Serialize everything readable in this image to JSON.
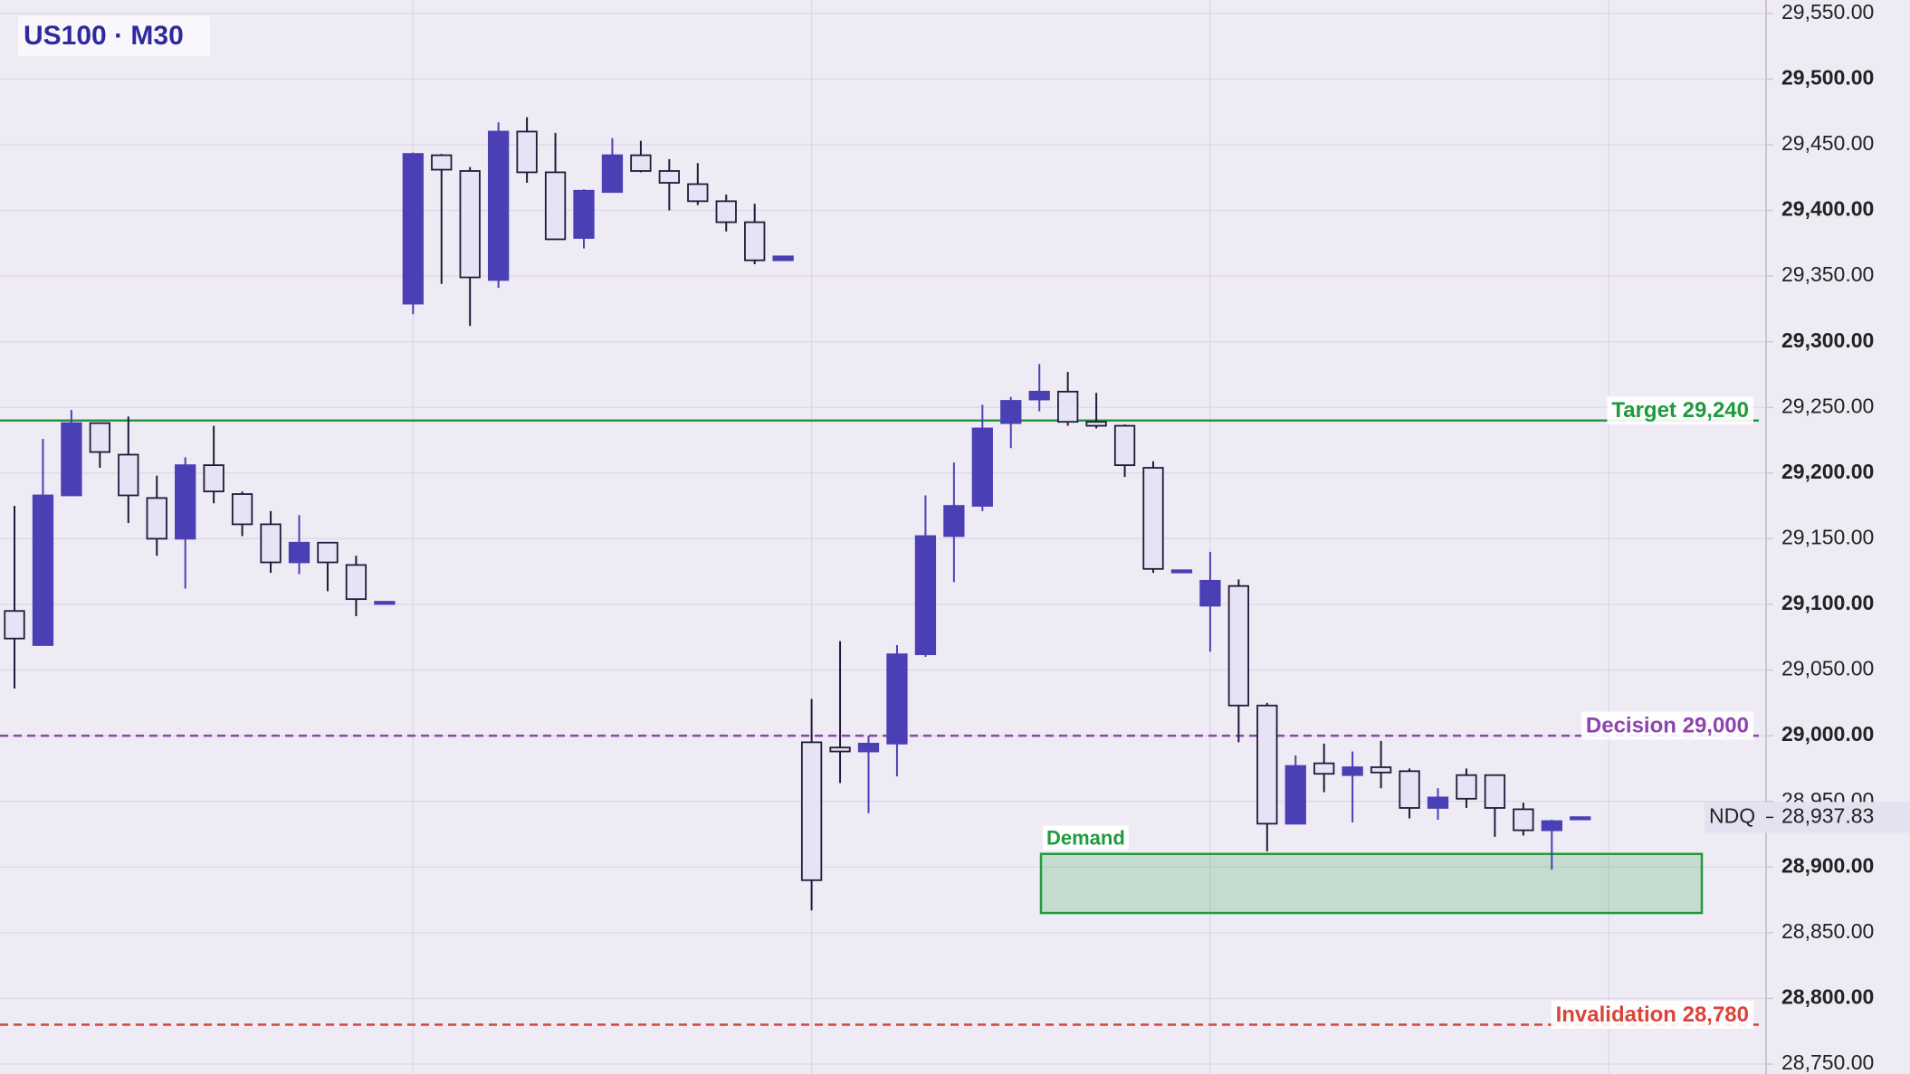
{
  "chart_data": {
    "type": "candlestick",
    "title": "US100 · M30",
    "series": [
      {
        "name": "US100",
        "up_color": "#4b3fb5",
        "down_color": "#e6e3f4",
        "outline": "#1e1b3a",
        "open": [
          29095,
          29069,
          29183,
          29238,
          29214,
          29181,
          29150,
          29206,
          29184,
          29161,
          29132,
          29147,
          29130,
          29102,
          29329,
          29442,
          29430,
          29347,
          29460,
          29429,
          29379,
          29414,
          29442,
          29430,
          29420,
          29407,
          29391,
          29362,
          28995,
          28991,
          28988,
          28994,
          29062,
          29152,
          29175,
          29238,
          29256,
          29262,
          29239,
          29236,
          29204,
          29126,
          29099,
          29114,
          29023,
          28933,
          28979,
          28970,
          28976,
          28973,
          28945,
          28970,
          28970,
          28944,
          28928,
          28938
        ],
        "high": [
          29175,
          29226,
          29248,
          29238,
          29243,
          29198,
          29212,
          29236,
          29186,
          29171,
          29168,
          29147,
          29137,
          29102,
          29444,
          29443,
          29433,
          29467,
          29471,
          29459,
          29416,
          29455,
          29453,
          29439,
          29436,
          29412,
          29405,
          29365,
          29028,
          29072,
          29000,
          29069,
          29183,
          29208,
          29252,
          29258,
          29283,
          29277,
          29261,
          29237,
          29209,
          29126,
          29140,
          29119,
          29025,
          28985,
          28994,
          28988,
          28996,
          28975,
          28960,
          28975,
          28970,
          28949,
          28936,
          28938
        ],
        "low": [
          29036,
          29069,
          29183,
          29204,
          29162,
          29137,
          29112,
          29177,
          29152,
          29124,
          29123,
          29110,
          29091,
          29102,
          29321,
          29344,
          29312,
          29341,
          29421,
          29378,
          29371,
          29414,
          29429,
          29400,
          29404,
          29384,
          29359,
          29362,
          28867,
          28964,
          28941,
          28969,
          29060,
          29117,
          29171,
          29219,
          29247,
          29236,
          29234,
          29197,
          29124,
          29126,
          29064,
          28995,
          28912,
          28933,
          28957,
          28934,
          28960,
          28937,
          28936,
          28945,
          28923,
          28924,
          28898,
          28938
        ],
        "close": [
          29074,
          29183,
          29238,
          29216,
          29183,
          29150,
          29206,
          29186,
          29161,
          29132,
          29147,
          29132,
          29104,
          29102,
          29443,
          29431,
          29349,
          29460,
          29429,
          29378,
          29415,
          29442,
          29430,
          29421,
          29407,
          29391,
          29362,
          29365,
          28890,
          28988,
          28994,
          29062,
          29152,
          29175,
          29234,
          29255,
          29262,
          29239,
          29236,
          29206,
          29127,
          29126,
          29118,
          29023,
          28933,
          28977,
          28971,
          28976,
          28972,
          28945,
          28953,
          28952,
          28945,
          28928,
          28935,
          28938
        ]
      }
    ],
    "ylim": [
      28750,
      29550
    ],
    "yticks": [
      {
        "value": 28750,
        "label": "28,750.00"
      },
      {
        "value": 28800,
        "label": "28,800.00"
      },
      {
        "value": 28850,
        "label": "28,850.00"
      },
      {
        "value": 28900,
        "label": "28,900.00"
      },
      {
        "value": 28950,
        "label": "28,950.00"
      },
      {
        "value": 29000,
        "label": "29,000.00"
      },
      {
        "value": 29050,
        "label": "29,050.00"
      },
      {
        "value": 29100,
        "label": "29,100.00"
      },
      {
        "value": 29150,
        "label": "29,150.00"
      },
      {
        "value": 29200,
        "label": "29,200.00"
      },
      {
        "value": 29250,
        "label": "29,250.00"
      },
      {
        "value": 29300,
        "label": "29,300.00"
      },
      {
        "value": 29350,
        "label": "29,350.00"
      },
      {
        "value": 29400,
        "label": "29,400.00"
      },
      {
        "value": 29450,
        "label": "29,450.00"
      },
      {
        "value": 29500,
        "label": "29,500.00"
      },
      {
        "value": 29550,
        "label": "29,550.00"
      }
    ],
    "grid": true,
    "levels": [
      {
        "label": "Target 29,240",
        "value": 29240,
        "color": "#1f9a3c",
        "style": "solid"
      },
      {
        "label": "Decision 29,000",
        "value": 29000,
        "color": "#8e44ad",
        "style": "dashed"
      },
      {
        "label": "Invalidation 28,780",
        "value": 28780,
        "color": "#d9443a",
        "style": "dashed"
      }
    ],
    "zone": {
      "label": "Demand",
      "low": 28865,
      "high": 28910,
      "color": "#1f9a3c"
    },
    "price_label": {
      "name": "NDQ",
      "value": 28937.83,
      "label": "28,937.83"
    }
  }
}
